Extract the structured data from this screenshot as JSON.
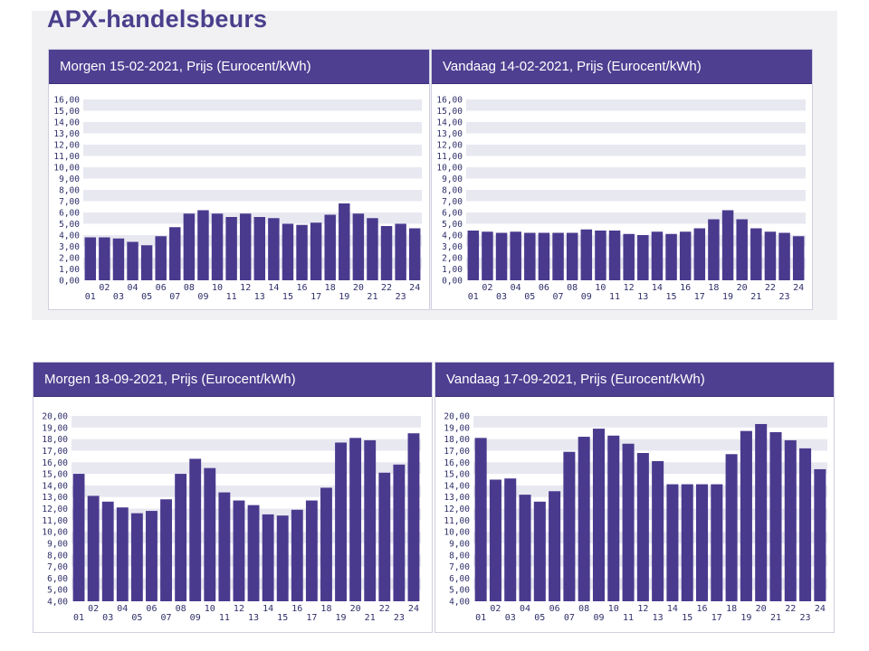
{
  "page": {
    "title": "APX-handelsbeurs"
  },
  "colors": {
    "header": "#4f3f91",
    "bar": "#4a3a8e",
    "band": "#e8e8f1",
    "text": "#2e2e6a"
  },
  "chart_data": [
    {
      "type": "bar",
      "title": "Morgen 15-02-2021, Prijs (Eurocent/kWh)",
      "categories": [
        "01",
        "02",
        "03",
        "04",
        "05",
        "06",
        "07",
        "08",
        "09",
        "10",
        "11",
        "12",
        "13",
        "14",
        "15",
        "16",
        "17",
        "18",
        "19",
        "20",
        "21",
        "22",
        "23",
        "24"
      ],
      "values": [
        3.8,
        3.8,
        3.7,
        3.4,
        3.1,
        3.9,
        4.7,
        5.9,
        6.2,
        5.9,
        5.6,
        5.9,
        5.6,
        5.5,
        5.0,
        4.9,
        5.1,
        5.8,
        6.8,
        5.9,
        5.5,
        4.8,
        5.0,
        4.6
      ],
      "ylim": [
        0,
        16
      ],
      "yticks": [
        "0,00",
        "1,00",
        "2,00",
        "3,00",
        "4,00",
        "5,00",
        "6,00",
        "7,00",
        "8,00",
        "9,00",
        "10,00",
        "11,00",
        "12,00",
        "13,00",
        "14,00",
        "15,00",
        "16,00"
      ],
      "xlabel": "",
      "ylabel": ""
    },
    {
      "type": "bar",
      "title": "Vandaag 14-02-2021, Prijs (Eurocent/kWh)",
      "categories": [
        "01",
        "02",
        "03",
        "04",
        "05",
        "06",
        "07",
        "08",
        "09",
        "10",
        "11",
        "12",
        "13",
        "14",
        "15",
        "16",
        "17",
        "18",
        "19",
        "20",
        "21",
        "22",
        "23",
        "24"
      ],
      "values": [
        4.4,
        4.3,
        4.2,
        4.3,
        4.2,
        4.2,
        4.2,
        4.2,
        4.5,
        4.4,
        4.4,
        4.1,
        4.0,
        4.3,
        4.1,
        4.3,
        4.6,
        5.4,
        6.2,
        5.4,
        4.6,
        4.3,
        4.2,
        3.9
      ],
      "ylim": [
        0,
        16
      ],
      "yticks": [
        "0,00",
        "1,00",
        "2,00",
        "3,00",
        "4,00",
        "5,00",
        "6,00",
        "7,00",
        "8,00",
        "9,00",
        "10,00",
        "11,00",
        "12,00",
        "13,00",
        "14,00",
        "15,00",
        "16,00"
      ],
      "xlabel": "",
      "ylabel": ""
    },
    {
      "type": "bar",
      "title": "Morgen 18-09-2021, Prijs (Eurocent/kWh)",
      "categories": [
        "01",
        "02",
        "03",
        "04",
        "05",
        "06",
        "07",
        "08",
        "09",
        "10",
        "11",
        "12",
        "13",
        "14",
        "15",
        "16",
        "17",
        "18",
        "19",
        "20",
        "21",
        "22",
        "23",
        "24"
      ],
      "values": [
        15.0,
        13.1,
        12.6,
        12.1,
        11.6,
        11.8,
        12.8,
        15.0,
        16.3,
        15.5,
        13.4,
        12.7,
        12.3,
        11.5,
        11.4,
        11.9,
        12.7,
        13.8,
        17.7,
        18.1,
        17.9,
        15.1,
        15.8,
        18.5
      ],
      "ylim": [
        4,
        20
      ],
      "yticks": [
        "4,00",
        "5,00",
        "6,00",
        "7,00",
        "8,00",
        "9,00",
        "10,00",
        "11,00",
        "12,00",
        "13,00",
        "14,00",
        "15,00",
        "16,00",
        "17,00",
        "18,00",
        "19,00",
        "20,00"
      ],
      "xlabel": "",
      "ylabel": ""
    },
    {
      "type": "bar",
      "title": "Vandaag 17-09-2021, Prijs (Eurocent/kWh)",
      "categories": [
        "01",
        "02",
        "03",
        "04",
        "05",
        "06",
        "07",
        "08",
        "09",
        "10",
        "11",
        "12",
        "13",
        "14",
        "15",
        "16",
        "17",
        "18",
        "19",
        "20",
        "21",
        "22",
        "23",
        "24"
      ],
      "values": [
        18.1,
        14.5,
        14.6,
        13.2,
        12.6,
        13.5,
        16.9,
        18.2,
        18.9,
        18.3,
        17.6,
        16.8,
        16.1,
        14.1,
        14.1,
        14.1,
        14.1,
        16.7,
        18.7,
        19.3,
        18.6,
        17.9,
        17.2,
        15.4
      ],
      "ylim": [
        4,
        20
      ],
      "yticks": [
        "4,00",
        "5,00",
        "6,00",
        "7,00",
        "8,00",
        "9,00",
        "10,00",
        "11,00",
        "12,00",
        "13,00",
        "14,00",
        "15,00",
        "16,00",
        "17,00",
        "18,00",
        "19,00",
        "20,00"
      ],
      "xlabel": "",
      "ylabel": ""
    }
  ]
}
